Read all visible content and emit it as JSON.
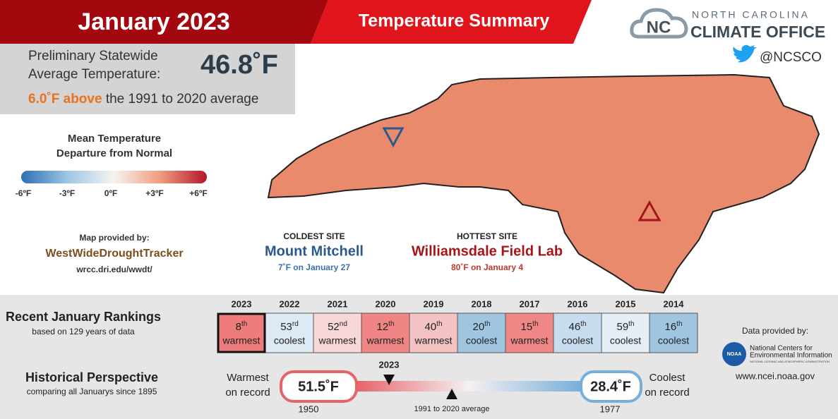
{
  "header": {
    "title": "January 2023",
    "subtitle": "Temperature Summary",
    "org_line1": "NORTH CAROLINA",
    "org_line2": "CLIMATE OFFICE",
    "logo_text": "NC",
    "twitter": "@NCSCO"
  },
  "statewide": {
    "label_line1": "Preliminary Statewide",
    "label_line2": "Average Temperature:",
    "value": "46.8˚F",
    "anomaly": "6.0˚F above",
    "anomaly_rest": " the 1991 to 2020 average"
  },
  "legend": {
    "title_line1": "Mean Temperature",
    "title_line2": "Departure from Normal",
    "ticks": [
      "-6ºF",
      "-3ºF",
      "0ºF",
      "+3ºF",
      "+6ºF"
    ]
  },
  "credit": {
    "label": "Map provided by:",
    "name": "WestWideDroughtTracker",
    "url": "wrcc.dri.edu/wwdt/"
  },
  "coldest": {
    "label": "COLDEST SITE",
    "name": "Mount Mitchell",
    "detail": "7˚F on January 27"
  },
  "hottest": {
    "label": "HOTTEST SITE",
    "name": "Williamsdale Field Lab",
    "detail": "80˚F on January 4"
  },
  "rankings": {
    "title": "Recent January Rankings",
    "subtitle": "based on 129 years of data",
    "years": [
      {
        "year": "2023",
        "rank": "8",
        "suffix": "th",
        "label": "warmest",
        "color": "#ef7c7c"
      },
      {
        "year": "2022",
        "rank": "53",
        "suffix": "rd",
        "label": "coolest",
        "color": "#dde9f3"
      },
      {
        "year": "2021",
        "rank": "52",
        "suffix": "nd",
        "label": "warmest",
        "color": "#f7d7d7"
      },
      {
        "year": "2020",
        "rank": "12",
        "suffix": "th",
        "label": "warmest",
        "color": "#f08585"
      },
      {
        "year": "2019",
        "rank": "40",
        "suffix": "th",
        "label": "warmest",
        "color": "#f3c3c3"
      },
      {
        "year": "2018",
        "rank": "20",
        "suffix": "th",
        "label": "coolest",
        "color": "#9fc5e1"
      },
      {
        "year": "2017",
        "rank": "15",
        "suffix": "th",
        "label": "warmest",
        "color": "#f08787"
      },
      {
        "year": "2016",
        "rank": "46",
        "suffix": "th",
        "label": "coolest",
        "color": "#c7dcee"
      },
      {
        "year": "2015",
        "rank": "59",
        "suffix": "th",
        "label": "coolest",
        "color": "#e5edf5"
      },
      {
        "year": "2014",
        "rank": "16",
        "suffix": "th",
        "label": "coolest",
        "color": "#9fc5e1"
      }
    ]
  },
  "historical": {
    "title": "Historical Perspective",
    "subtitle": "comparing all Januarys since 1895",
    "warmest_line1": "Warmest",
    "warmest_line2": "on record",
    "warmest_value": "51.5˚F",
    "warmest_year": "1950",
    "coolest_line1": "Coolest",
    "coolest_line2": "on record",
    "coolest_value": "28.4˚F",
    "coolest_year": "1977",
    "current_label": "2023",
    "average_label": "1991 to 2020 average"
  },
  "data_credit": {
    "label": "Data provided by:",
    "logo": "NOAA",
    "org_line1": "National Centers for",
    "org_line2": "Environmental Information",
    "org_line3": "NATIONAL OCEANIC AND ATMOSPHERIC ADMINISTRATION",
    "url": "www.ncei.noaa.gov"
  }
}
